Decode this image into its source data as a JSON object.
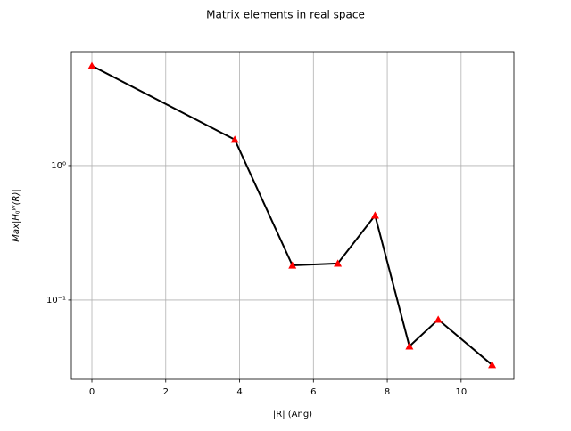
{
  "chart_data": {
    "type": "line",
    "title": "Matrix elements in real space",
    "x_label": "|R| (Ang)",
    "y_label": "Max|Hᵢⱼᵂ(R)|",
    "x": [
      0,
      3.87,
      5.43,
      6.66,
      7.67,
      8.6,
      9.38,
      10.84
    ],
    "values": [
      5.52,
      1.56,
      0.181,
      0.187,
      0.426,
      0.0453,
      0.0715,
      0.0329
    ],
    "color": "#000000",
    "marker_color": "#ff0000",
    "xlim": [
      -0.556,
      11.43
    ],
    "xticks": [
      0,
      2,
      4,
      6,
      8,
      10
    ],
    "ylim": [
      0.0257,
      7.04
    ],
    "yticks": [
      {
        "value": 1,
        "label": "10⁰"
      },
      {
        "value": 0.1,
        "label": "10⁻¹"
      }
    ],
    "y_scale": "log",
    "grid": true
  }
}
